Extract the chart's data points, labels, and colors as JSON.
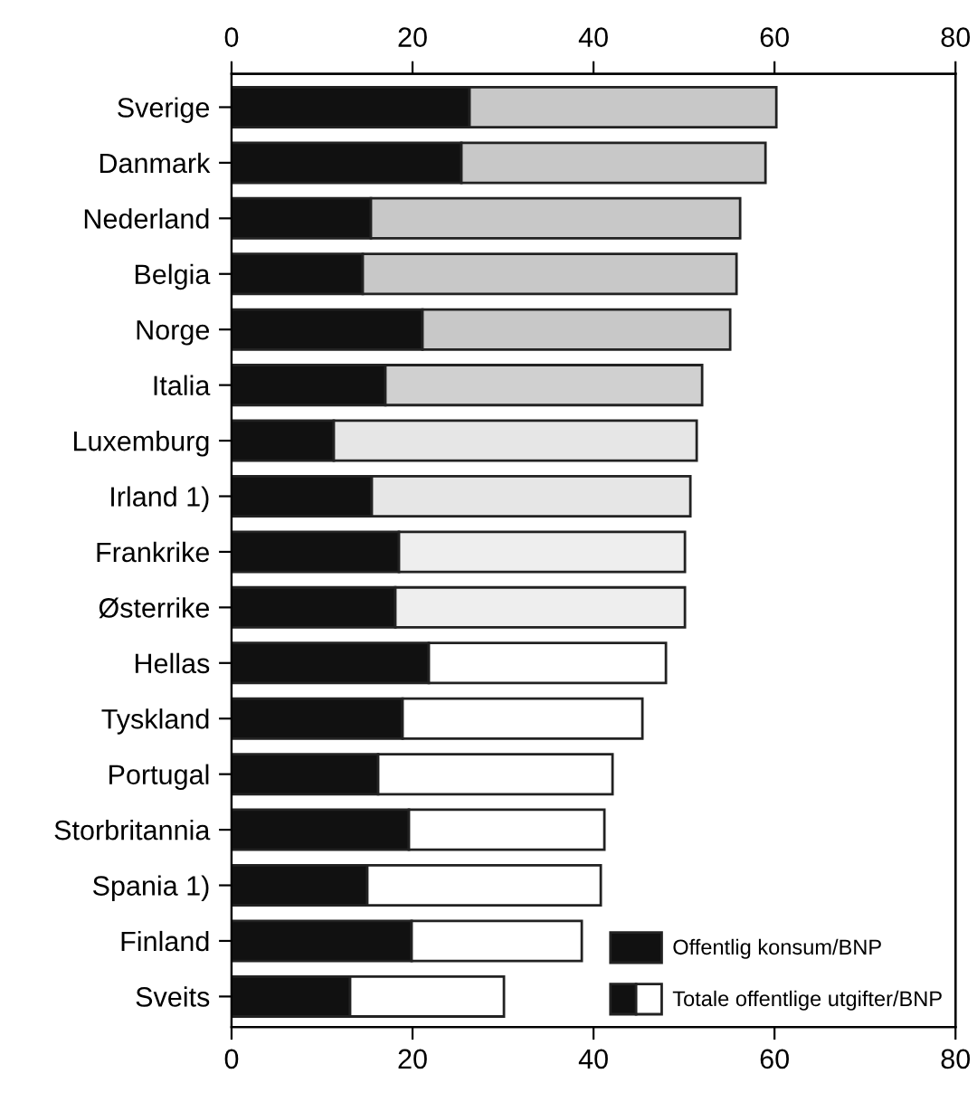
{
  "chart_data": {
    "type": "bar",
    "orientation": "horizontal",
    "stacked": true,
    "categories": [
      "Sverige",
      "Danmark",
      "Nederland",
      "Belgia",
      "Norge",
      "Italia",
      "Luxemburg",
      "Irland 1)",
      "Frankrike",
      "Østerrike",
      "Hellas",
      "Tyskland",
      "Portugal",
      "Storbritannia",
      "Spania 1)",
      "Finland",
      "Sveits"
    ],
    "series": [
      {
        "name": "Offentlig konsum/BNP",
        "color": "#111111",
        "values": [
          26.3,
          25.4,
          15.4,
          14.5,
          21.1,
          17.0,
          11.3,
          15.5,
          18.5,
          18.1,
          21.8,
          18.9,
          16.2,
          19.6,
          15.0,
          19.9,
          13.1
        ]
      },
      {
        "name": "Totale offentlige utgifter/BNP",
        "color": "#ffffff",
        "colors": [
          "#c8c8c8",
          "#c8c8c8",
          "#c8c8c8",
          "#c8c8c8",
          "#c8c8c8",
          "#d0d0d0",
          "#e6e6e6",
          "#e6e6e6",
          "#eeeeee",
          "#eeeeee",
          "#ffffff",
          "#ffffff",
          "#ffffff",
          "#ffffff",
          "#ffffff",
          "#ffffff",
          "#ffffff"
        ],
        "values": [
          33.9,
          33.6,
          40.8,
          41.3,
          34.0,
          35.0,
          40.1,
          35.2,
          31.6,
          32.0,
          26.2,
          26.5,
          25.9,
          21.6,
          25.8,
          18.8,
          17.0
        ]
      }
    ],
    "xlim": [
      0,
      80
    ],
    "xticks": [
      0,
      20,
      40,
      60,
      80
    ],
    "x2lim": [
      0,
      80
    ],
    "x2ticks": [
      0,
      20,
      40,
      60,
      80
    ],
    "grid": false,
    "legend": "bottom right"
  }
}
